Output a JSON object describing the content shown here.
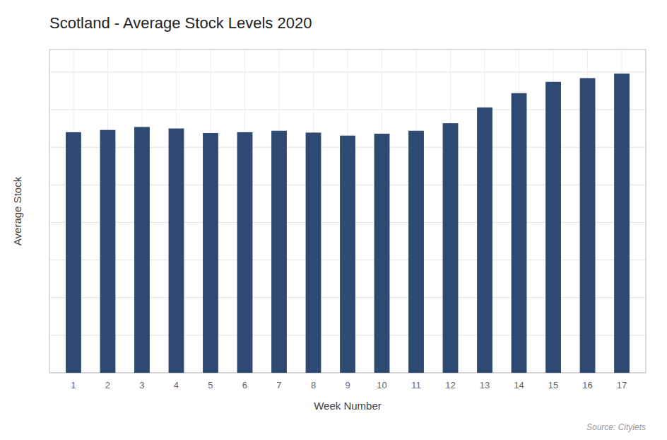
{
  "chart_data": {
    "type": "bar",
    "title": "Scotland - Average Stock Levels 2020",
    "x_label": "Week Number",
    "y_label": "Average Stock",
    "annotations": [
      "Source: Citylets"
    ],
    "x": [
      1,
      2,
      3,
      4,
      5,
      6,
      7,
      8,
      9,
      10,
      11,
      12,
      13,
      14,
      15,
      16,
      17
    ],
    "values": [
      3200,
      3230,
      3270,
      3250,
      3190,
      3200,
      3220,
      3195,
      3155,
      3180,
      3220,
      3320,
      3530,
      3720,
      3870,
      3920,
      3980
    ],
    "color": "#2e4a72",
    "xlim": [
      0.3,
      17.7
    ],
    "xticks": [
      1,
      2,
      3,
      4,
      5,
      6,
      7,
      8,
      9,
      10,
      11,
      12,
      13,
      14,
      15,
      16,
      17
    ],
    "ylim": [
      0,
      4300
    ],
    "yticks": [
      0,
      500,
      1000,
      1500,
      2000,
      2500,
      3000,
      3500,
      4000
    ],
    "grid": true,
    "tick_labels": "x"
  }
}
